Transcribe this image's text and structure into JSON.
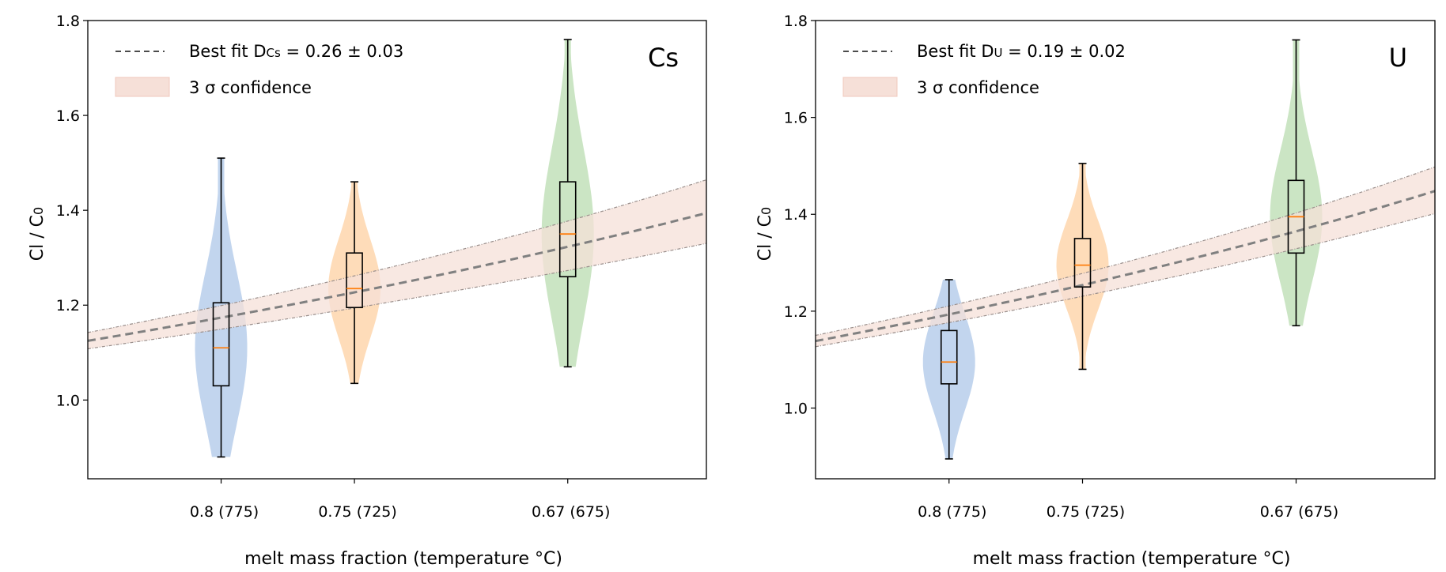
{
  "chart_data": [
    {
      "type": "violin",
      "panel_label": "Cs",
      "xlabel": "melt mass fraction (temperature °C)",
      "ylabel_main": "Cl / C",
      "ylabel_sub": "0",
      "xlim": [
        0.85,
        0.618
      ],
      "ylim": [
        0.834,
        1.8
      ],
      "yticks": [
        "1.0",
        "1.2",
        "1.4",
        "1.6",
        "1.8"
      ],
      "grid": false,
      "legend_placement": "top-left",
      "legend": {
        "fit_prefix": "Best fit D",
        "fit_sub": "Cs",
        "fit_suffix": " = 0.26 ± 0.03",
        "band_label": "3 σ confidence"
      },
      "fit": {
        "D": 0.26,
        "sigma": 0.03,
        "band_sigmas": 3
      },
      "categories": [
        {
          "x": 0.8,
          "label": "0.8 (775)",
          "color": "#aec7e8",
          "min": 0.88,
          "q1": 1.03,
          "median": 1.11,
          "q3": 1.205,
          "max": 1.51
        },
        {
          "x": 0.75,
          "label": "0.75 (725)",
          "color": "#fdd0a2",
          "min": 1.035,
          "q1": 1.195,
          "median": 1.235,
          "q3": 1.31,
          "max": 1.46
        },
        {
          "x": 0.67,
          "label": "0.67 (675)",
          "color": "#b9dcb0",
          "min": 1.07,
          "q1": 1.26,
          "median": 1.35,
          "q3": 1.46,
          "max": 1.76
        }
      ]
    },
    {
      "type": "violin",
      "panel_label": "U",
      "xlabel": "melt mass fraction (temperature °C)",
      "ylabel_main": "Cl / C",
      "ylabel_sub": "0",
      "xlim": [
        0.85,
        0.618
      ],
      "ylim": [
        0.854,
        1.8
      ],
      "yticks": [
        "1.0",
        "1.2",
        "1.4",
        "1.6",
        "1.8"
      ],
      "grid": false,
      "legend_placement": "top-left",
      "legend": {
        "fit_prefix": "Best fit D",
        "fit_sub": "U",
        "fit_suffix": " = 0.19 ± 0.02",
        "band_label": "3 σ confidence"
      },
      "fit": {
        "D": 0.19,
        "sigma": 0.02,
        "band_sigmas": 3
      },
      "categories": [
        {
          "x": 0.8,
          "label": "0.8 (775)",
          "color": "#aec7e8",
          "min": 0.895,
          "q1": 1.05,
          "median": 1.095,
          "q3": 1.16,
          "max": 1.265
        },
        {
          "x": 0.75,
          "label": "0.75 (725)",
          "color": "#fdd0a2",
          "min": 1.08,
          "q1": 1.25,
          "median": 1.295,
          "q3": 1.35,
          "max": 1.505
        },
        {
          "x": 0.67,
          "label": "0.67 (675)",
          "color": "#b9dcb0",
          "min": 1.17,
          "q1": 1.32,
          "median": 1.395,
          "q3": 1.47,
          "max": 1.76
        }
      ]
    }
  ],
  "colors": {
    "band_fill": "#f6e0d8",
    "band_edge": "#9a8f8c",
    "fit_line": "#808080",
    "median": "#ff7f0e"
  }
}
